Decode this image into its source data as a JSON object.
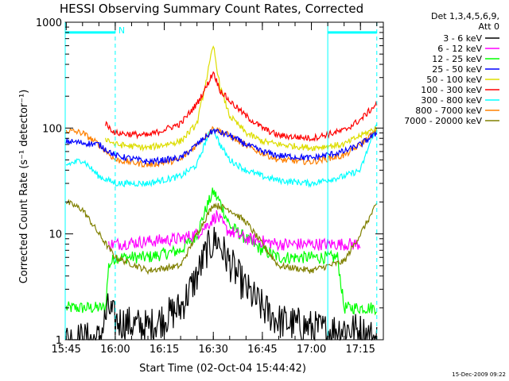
{
  "chart_data": {
    "type": "line",
    "title": "HESSI Observing Summary Count Rates, Corrected",
    "xlabel": "Start Time (02-Oct-04 15:44:42)",
    "ylabel": "Corrected Count Rate (s⁻¹ detector⁻¹)",
    "y_scale": "log",
    "ylim": [
      1,
      1000
    ],
    "xlim": [
      "15:44:42",
      "17:22:00"
    ],
    "x_tick_labels": [
      "15:45",
      "16:00",
      "16:15",
      "16:30",
      "16:45",
      "17:00",
      "17:15"
    ],
    "y_tick_labels": [
      "1",
      "10",
      "100",
      "1000"
    ],
    "legend_header": [
      "Det 1,3,4,5,6,9,",
      "Att 0"
    ],
    "legend_position": "right-outside",
    "timestamp": "15-Dec-2009 09:22",
    "annotations": [
      {
        "text": "N",
        "x": "16:00",
        "color": "#00ffff"
      }
    ],
    "night_markers": [
      {
        "from": "15:44:42",
        "to": "16:00",
        "color": "#00ffff",
        "y": 800
      },
      {
        "from": "17:05",
        "to": "17:20",
        "color": "#00ffff",
        "y": 800
      }
    ],
    "series": [
      {
        "name": "3 - 6 keV",
        "color": "#000000",
        "x": [
          "15:45",
          "15:55",
          "15:58",
          "16:00",
          "16:10",
          "16:20",
          "16:25",
          "16:28",
          "16:31",
          "16:34",
          "16:40",
          "16:45",
          "16:50",
          "17:00",
          "17:05",
          "17:10",
          "17:15",
          "17:20"
        ],
        "y": [
          1,
          1,
          2,
          1.5,
          1.3,
          2,
          4,
          7,
          9,
          6,
          3,
          2,
          1.5,
          1.3,
          1.2,
          1.3,
          1.2,
          1
        ]
      },
      {
        "name": "6 - 12 keV",
        "color": "#ff00ff",
        "x": [
          "15:58",
          "16:00",
          "16:10",
          "16:20",
          "16:25",
          "16:28",
          "16:31",
          "16:34",
          "16:40",
          "16:45",
          "16:50",
          "17:00",
          "17:10",
          "17:15"
        ],
        "y": [
          8,
          8,
          8.5,
          9,
          10,
          12,
          15,
          11,
          9,
          8.5,
          8,
          8,
          8,
          8
        ]
      },
      {
        "name": "12 - 25 keV",
        "color": "#00ff00",
        "x": [
          "15:45",
          "15:57",
          "15:58",
          "16:00",
          "16:10",
          "16:20",
          "16:25",
          "16:28",
          "16:30",
          "16:32",
          "16:35",
          "16:40",
          "16:45",
          "16:50",
          "17:00",
          "17:08",
          "17:10",
          "17:15",
          "17:20"
        ],
        "y": [
          2,
          2,
          5,
          6,
          6,
          7,
          10,
          18,
          25,
          20,
          12,
          9,
          7,
          6,
          6,
          6,
          2,
          2,
          2
        ]
      },
      {
        "name": "25 - 50 keV",
        "color": "#0000ff",
        "x": [
          "15:45",
          "15:55",
          "16:00",
          "16:10",
          "16:20",
          "16:25",
          "16:30",
          "16:35",
          "16:40",
          "16:45",
          "16:50",
          "17:00",
          "17:10",
          "17:15",
          "17:20"
        ],
        "y": [
          75,
          70,
          55,
          48,
          52,
          70,
          95,
          85,
          70,
          60,
          55,
          52,
          60,
          70,
          90
        ]
      },
      {
        "name": "50 - 100 keV",
        "color": "#dddd00",
        "x": [
          "15:57",
          "16:00",
          "16:10",
          "16:20",
          "16:25",
          "16:28",
          "16:30",
          "16:32",
          "16:35",
          "16:40",
          "16:45",
          "16:50",
          "17:00",
          "17:10",
          "17:15",
          "17:20"
        ],
        "y": [
          80,
          70,
          65,
          75,
          110,
          300,
          600,
          250,
          130,
          90,
          75,
          70,
          65,
          70,
          85,
          100
        ]
      },
      {
        "name": "100 - 300 keV",
        "color": "#ff0000",
        "x": [
          "15:57",
          "16:00",
          "16:10",
          "16:20",
          "16:25",
          "16:28",
          "16:30",
          "16:32",
          "16:35",
          "16:40",
          "16:45",
          "16:50",
          "17:00",
          "17:10",
          "17:15",
          "17:20"
        ],
        "y": [
          110,
          90,
          85,
          110,
          170,
          250,
          340,
          230,
          180,
          130,
          100,
          85,
          80,
          95,
          120,
          170
        ]
      },
      {
        "name": "300 - 800 keV",
        "color": "#00ffff",
        "x": [
          "15:45",
          "15:50",
          "15:55",
          "16:00",
          "16:10",
          "16:20",
          "16:25",
          "16:28",
          "16:30",
          "16:32",
          "16:35",
          "16:40",
          "16:45",
          "16:50",
          "17:00",
          "17:10",
          "17:15",
          "17:20"
        ],
        "y": [
          45,
          50,
          35,
          30,
          30,
          35,
          45,
          80,
          100,
          70,
          50,
          40,
          35,
          32,
          30,
          35,
          40,
          110
        ]
      },
      {
        "name": "800 - 7000 keV",
        "color": "#ff8000",
        "x": [
          "15:45",
          "15:50",
          "15:55",
          "16:00",
          "16:10",
          "16:20",
          "16:25",
          "16:30",
          "16:35",
          "16:40",
          "16:45",
          "16:50",
          "17:00",
          "17:10",
          "17:15",
          "17:20"
        ],
        "y": [
          95,
          90,
          70,
          50,
          45,
          50,
          70,
          100,
          85,
          68,
          58,
          50,
          48,
          55,
          70,
          95
        ]
      },
      {
        "name": "7000 - 20000 keV",
        "color": "#808000",
        "x": [
          "15:45",
          "15:50",
          "15:55",
          "16:00",
          "16:10",
          "16:20",
          "16:25",
          "16:30",
          "16:35",
          "16:40",
          "16:45",
          "16:50",
          "17:00",
          "17:10",
          "17:15",
          "17:20"
        ],
        "y": [
          20,
          17,
          10,
          6,
          4.5,
          5,
          10,
          19,
          17,
          13,
          8,
          5,
          4.5,
          5.5,
          10,
          19
        ]
      }
    ]
  }
}
